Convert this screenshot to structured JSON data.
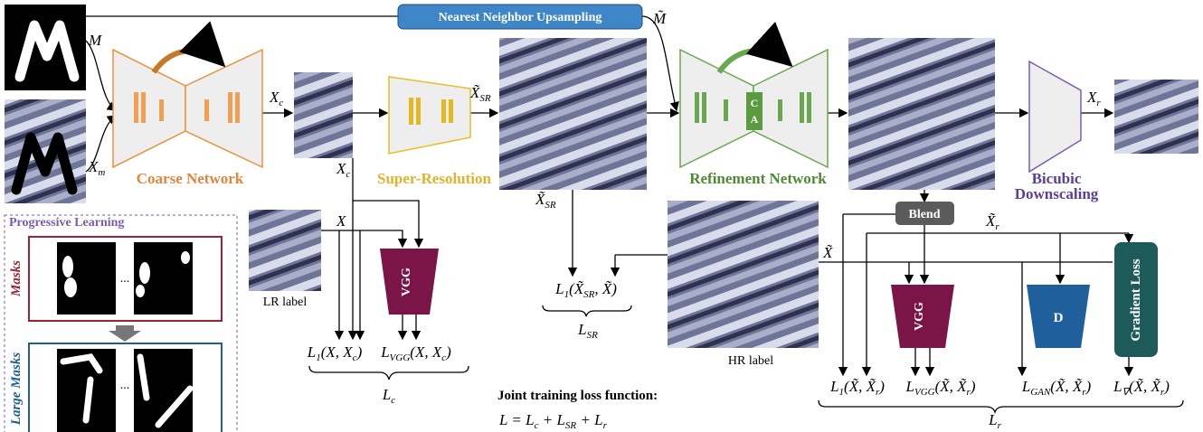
{
  "text": {
    "upsampling": "Nearest Neighbor Upsampling",
    "coarse": "Coarse Network",
    "sr": "Super-Resolution",
    "refine": "Refinement Network",
    "ca": [
      "C",
      "A"
    ],
    "bicubic": [
      "Bicubic",
      "Downscaling"
    ],
    "progressive": "Progressive Learning",
    "masks": "Masks",
    "large_masks": "Large Masks",
    "ellipsis_masks": "...",
    "ellipsis_large": "...",
    "lr_label": "LR label",
    "vgg_1": "VGG",
    "vgg_2": "VGG",
    "hr_label": "HR label",
    "joint_title": "Joint training loss function:",
    "blend": "Blend",
    "d": "D",
    "gradient": "Gradient Loss"
  },
  "labels": {
    "m": [
      {
        "t": "M"
      }
    ],
    "x_m": [
      {
        "t": "X"
      },
      {
        "s": "m"
      }
    ],
    "m_tilde": [
      {
        "t": "M̃"
      }
    ],
    "x_c_top": [
      {
        "t": "X"
      },
      {
        "s": "c"
      }
    ],
    "x_c_below": [
      {
        "t": "X"
      },
      {
        "s": "c"
      }
    ],
    "x_sr_top": [
      {
        "t": "X̃"
      },
      {
        "s": "SR"
      }
    ],
    "x_sr_below": [
      {
        "t": "X̃"
      },
      {
        "s": "SR"
      }
    ],
    "x_r": [
      {
        "t": "X"
      },
      {
        "s": "r"
      }
    ],
    "x_lr": [
      {
        "t": "X"
      }
    ],
    "x_tilde_hr": [
      {
        "t": "X̃"
      }
    ],
    "x_r_tilde": [
      {
        "t": "X̃"
      },
      {
        "s": "r"
      }
    ],
    "loss_l1_c": [
      {
        "t": "L"
      },
      {
        "s": "1"
      },
      {
        "t": "(X, X"
      },
      {
        "s": "c"
      },
      {
        "t": ")"
      }
    ],
    "loss_vgg_c": [
      {
        "t": "L"
      },
      {
        "s": "VGG"
      },
      {
        "t": "(X, X"
      },
      {
        "s": "c"
      },
      {
        "t": ")"
      }
    ],
    "l_c": [
      {
        "t": "L"
      },
      {
        "s": "c"
      }
    ],
    "loss_l1_sr": [
      {
        "t": "L"
      },
      {
        "s": "1"
      },
      {
        "t": "(X̃"
      },
      {
        "s": "SR"
      },
      {
        "t": ", X̃)"
      }
    ],
    "l_sr": [
      {
        "t": "L"
      },
      {
        "s": "SR"
      }
    ],
    "joint_eq": [
      {
        "t": "L = L"
      },
      {
        "s": "c"
      },
      {
        "t": " + L"
      },
      {
        "s": "SR"
      },
      {
        "t": " + L"
      },
      {
        "s": "r"
      }
    ],
    "loss_l1_r": [
      {
        "t": "L"
      },
      {
        "s": "1"
      },
      {
        "t": "(X̃, X̃"
      },
      {
        "s": "r"
      },
      {
        "t": ")"
      }
    ],
    "loss_vgg_r": [
      {
        "t": "L"
      },
      {
        "s": "VGG"
      },
      {
        "t": "(X̃, X̃"
      },
      {
        "s": "r"
      },
      {
        "t": ")"
      }
    ],
    "loss_gan_r": [
      {
        "t": "L"
      },
      {
        "s": "GAN"
      },
      {
        "t": "(X̃, X̃"
      },
      {
        "s": "r"
      },
      {
        "t": ")"
      }
    ],
    "loss_grad_r": [
      {
        "t": "L"
      },
      {
        "s": "∇"
      },
      {
        "t": "(X̃, X̃"
      },
      {
        "s": "r"
      },
      {
        "t": ")"
      }
    ],
    "l_r": [
      {
        "t": "L"
      },
      {
        "s": "r"
      }
    ]
  }
}
